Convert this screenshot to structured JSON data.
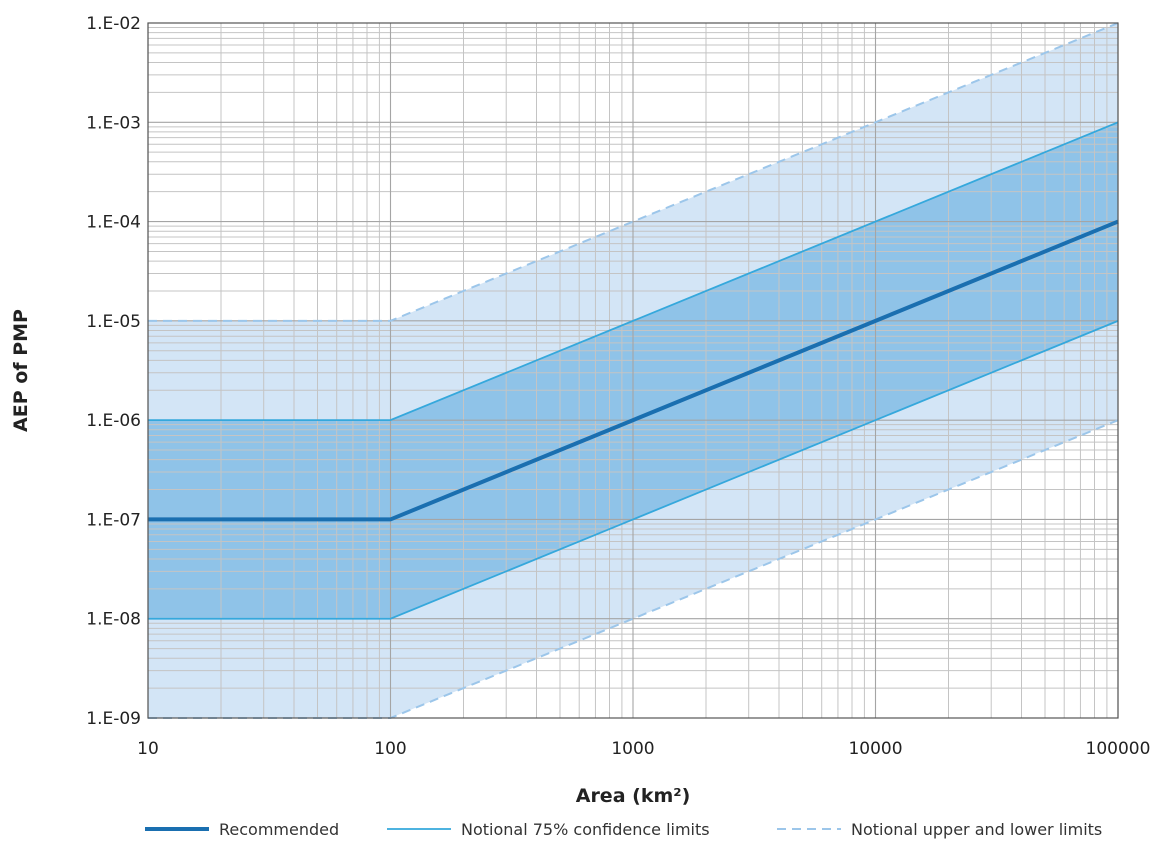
{
  "chart_data": {
    "type": "line",
    "title": "",
    "xlabel": "Area (km²)",
    "ylabel": "AEP of PMP",
    "x_scale": "log",
    "y_scale": "log",
    "xlim": [
      10,
      100000
    ],
    "ylim": [
      1e-09,
      0.01
    ],
    "grid": true,
    "x_ticks": [
      {
        "value": 10,
        "label": "10"
      },
      {
        "value": 100,
        "label": "100"
      },
      {
        "value": 1000,
        "label": "1000"
      },
      {
        "value": 10000,
        "label": "10000"
      },
      {
        "value": 100000,
        "label": "100000"
      }
    ],
    "y_ticks": [
      {
        "value": 0.01,
        "label": "1.E-02"
      },
      {
        "value": 0.001,
        "label": "1.E-03"
      },
      {
        "value": 0.0001,
        "label": "1.E-04"
      },
      {
        "value": 1e-05,
        "label": "1.E-05"
      },
      {
        "value": 1e-06,
        "label": "1.E-06"
      },
      {
        "value": 1e-07,
        "label": "1.E-07"
      },
      {
        "value": 1e-08,
        "label": "1.E-08"
      },
      {
        "value": 1e-09,
        "label": "1.E-09"
      }
    ],
    "x": [
      10,
      100,
      100000
    ],
    "series": [
      {
        "name": "Recommended",
        "style": "thick-solid",
        "color": "#1a6fb0",
        "values": [
          1e-07,
          1e-07,
          0.0001
        ]
      },
      {
        "name": "Notional 75% confidence limits",
        "style": "thin-solid",
        "color": "#35a8dc",
        "upper": [
          1e-06,
          1e-06,
          0.001
        ],
        "lower": [
          1e-08,
          1e-08,
          1e-05
        ]
      },
      {
        "name": "Notional upper and lower limits",
        "style": "dashed",
        "color": "#9cc6ea",
        "upper": [
          1e-05,
          1e-05,
          0.01
        ],
        "lower": [
          1e-09,
          1e-09,
          1e-06
        ]
      }
    ],
    "fill_colors": {
      "outer": "#d3e5f6",
      "inner": "#8fc3e8"
    },
    "legend_position": "bottom"
  }
}
